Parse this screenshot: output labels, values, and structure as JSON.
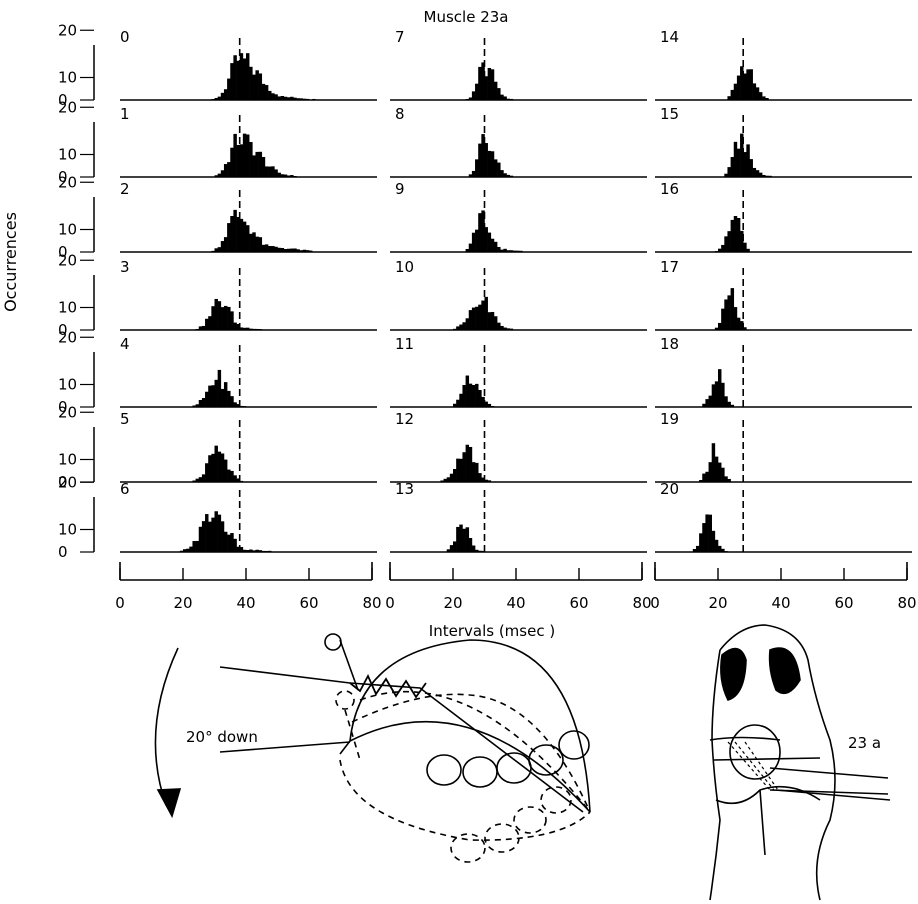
{
  "figure": {
    "title": "Muscle 23a",
    "ylabel": "Occurrences",
    "xlabel": "Intervals (msec )",
    "rotation_label": "20° down",
    "muscle_label": "23 a",
    "ink_color": "#000000"
  },
  "chart_data": {
    "type": "bar",
    "title": "Muscle 23a",
    "xlabel": "Intervals (msec )",
    "ylabel": "Occurrences",
    "xlim": [
      0,
      80
    ],
    "ylim": [
      0,
      20
    ],
    "x_ticks": [
      "0",
      "20",
      "40",
      "60",
      "80"
    ],
    "y_ticks": [
      "0",
      "10",
      "20"
    ],
    "columns": [
      {
        "reference_line_ms": 38,
        "panels": [
          {
            "label": "0",
            "peak": 38,
            "height": 18,
            "sigma_left": 3,
            "sigma_right": 6,
            "tail_end": 65,
            "tail_level": 3
          },
          {
            "label": "1",
            "peak": 38,
            "height": 17,
            "sigma_left": 3,
            "sigma_right": 6,
            "tail_end": 58,
            "tail_level": 4
          },
          {
            "label": "2",
            "peak": 37,
            "height": 16,
            "sigma_left": 3,
            "sigma_right": 5,
            "tail_end": 64,
            "tail_level": 4
          },
          {
            "label": "3",
            "peak": 32,
            "height": 13,
            "sigma_left": 3,
            "sigma_right": 3,
            "tail_end": 48,
            "tail_level": 2
          },
          {
            "label": "4",
            "peak": 31,
            "height": 13,
            "sigma_left": 3,
            "sigma_right": 3,
            "tail_end": 44,
            "tail_level": 1
          },
          {
            "label": "5",
            "peak": 31,
            "height": 13,
            "sigma_left": 3,
            "sigma_right": 3,
            "tail_end": 42,
            "tail_level": 1
          },
          {
            "label": "6",
            "peak": 30,
            "height": 17,
            "sigma_left": 4,
            "sigma_right": 4,
            "tail_end": 52,
            "tail_level": 2
          }
        ]
      },
      {
        "reference_line_ms": 30,
        "panels": [
          {
            "label": "7",
            "peak": 30,
            "height": 15,
            "sigma_left": 2,
            "sigma_right": 3,
            "tail_end": 44,
            "tail_level": 1
          },
          {
            "label": "8",
            "peak": 30,
            "height": 16,
            "sigma_left": 2,
            "sigma_right": 3,
            "tail_end": 42,
            "tail_level": 2
          },
          {
            "label": "9",
            "peak": 29,
            "height": 15,
            "sigma_left": 2,
            "sigma_right": 3,
            "tail_end": 46,
            "tail_level": 2
          },
          {
            "label": "10",
            "peak": 28,
            "height": 14,
            "sigma_left": 3,
            "sigma_right": 4,
            "tail_end": 42,
            "tail_level": 2
          },
          {
            "label": "11",
            "peak": 25,
            "height": 14,
            "sigma_left": 2,
            "sigma_right": 3,
            "tail_end": 36,
            "tail_level": 1
          },
          {
            "label": "12",
            "peak": 24,
            "height": 15,
            "sigma_left": 3,
            "sigma_right": 3,
            "tail_end": 36,
            "tail_level": 1
          },
          {
            "label": "13",
            "peak": 23,
            "height": 12,
            "sigma_left": 2,
            "sigma_right": 2,
            "tail_end": 34,
            "tail_level": 1
          }
        ]
      },
      {
        "reference_line_ms": 28,
        "panels": [
          {
            "label": "14",
            "peak": 28,
            "height": 17,
            "sigma_left": 2,
            "sigma_right": 3,
            "tail_end": 40,
            "tail_level": 1
          },
          {
            "label": "15",
            "peak": 27,
            "height": 16,
            "sigma_left": 2,
            "sigma_right": 3,
            "tail_end": 40,
            "tail_level": 2
          },
          {
            "label": "16",
            "peak": 25,
            "height": 16,
            "sigma_left": 2,
            "sigma_right": 2,
            "tail_end": 32,
            "tail_level": 1
          },
          {
            "label": "17",
            "peak": 24,
            "height": 16,
            "sigma_left": 2,
            "sigma_right": 2,
            "tail_end": 29,
            "tail_level": 0
          },
          {
            "label": "18",
            "peak": 20,
            "height": 14,
            "sigma_left": 2,
            "sigma_right": 2,
            "tail_end": 26,
            "tail_level": 0
          },
          {
            "label": "19",
            "peak": 19,
            "height": 14,
            "sigma_left": 2,
            "sigma_right": 2,
            "tail_end": 24,
            "tail_level": 0
          },
          {
            "label": "20",
            "peak": 17,
            "height": 14,
            "sigma_left": 2,
            "sigma_right": 2,
            "tail_end": 22,
            "tail_level": 0
          }
        ]
      }
    ]
  }
}
